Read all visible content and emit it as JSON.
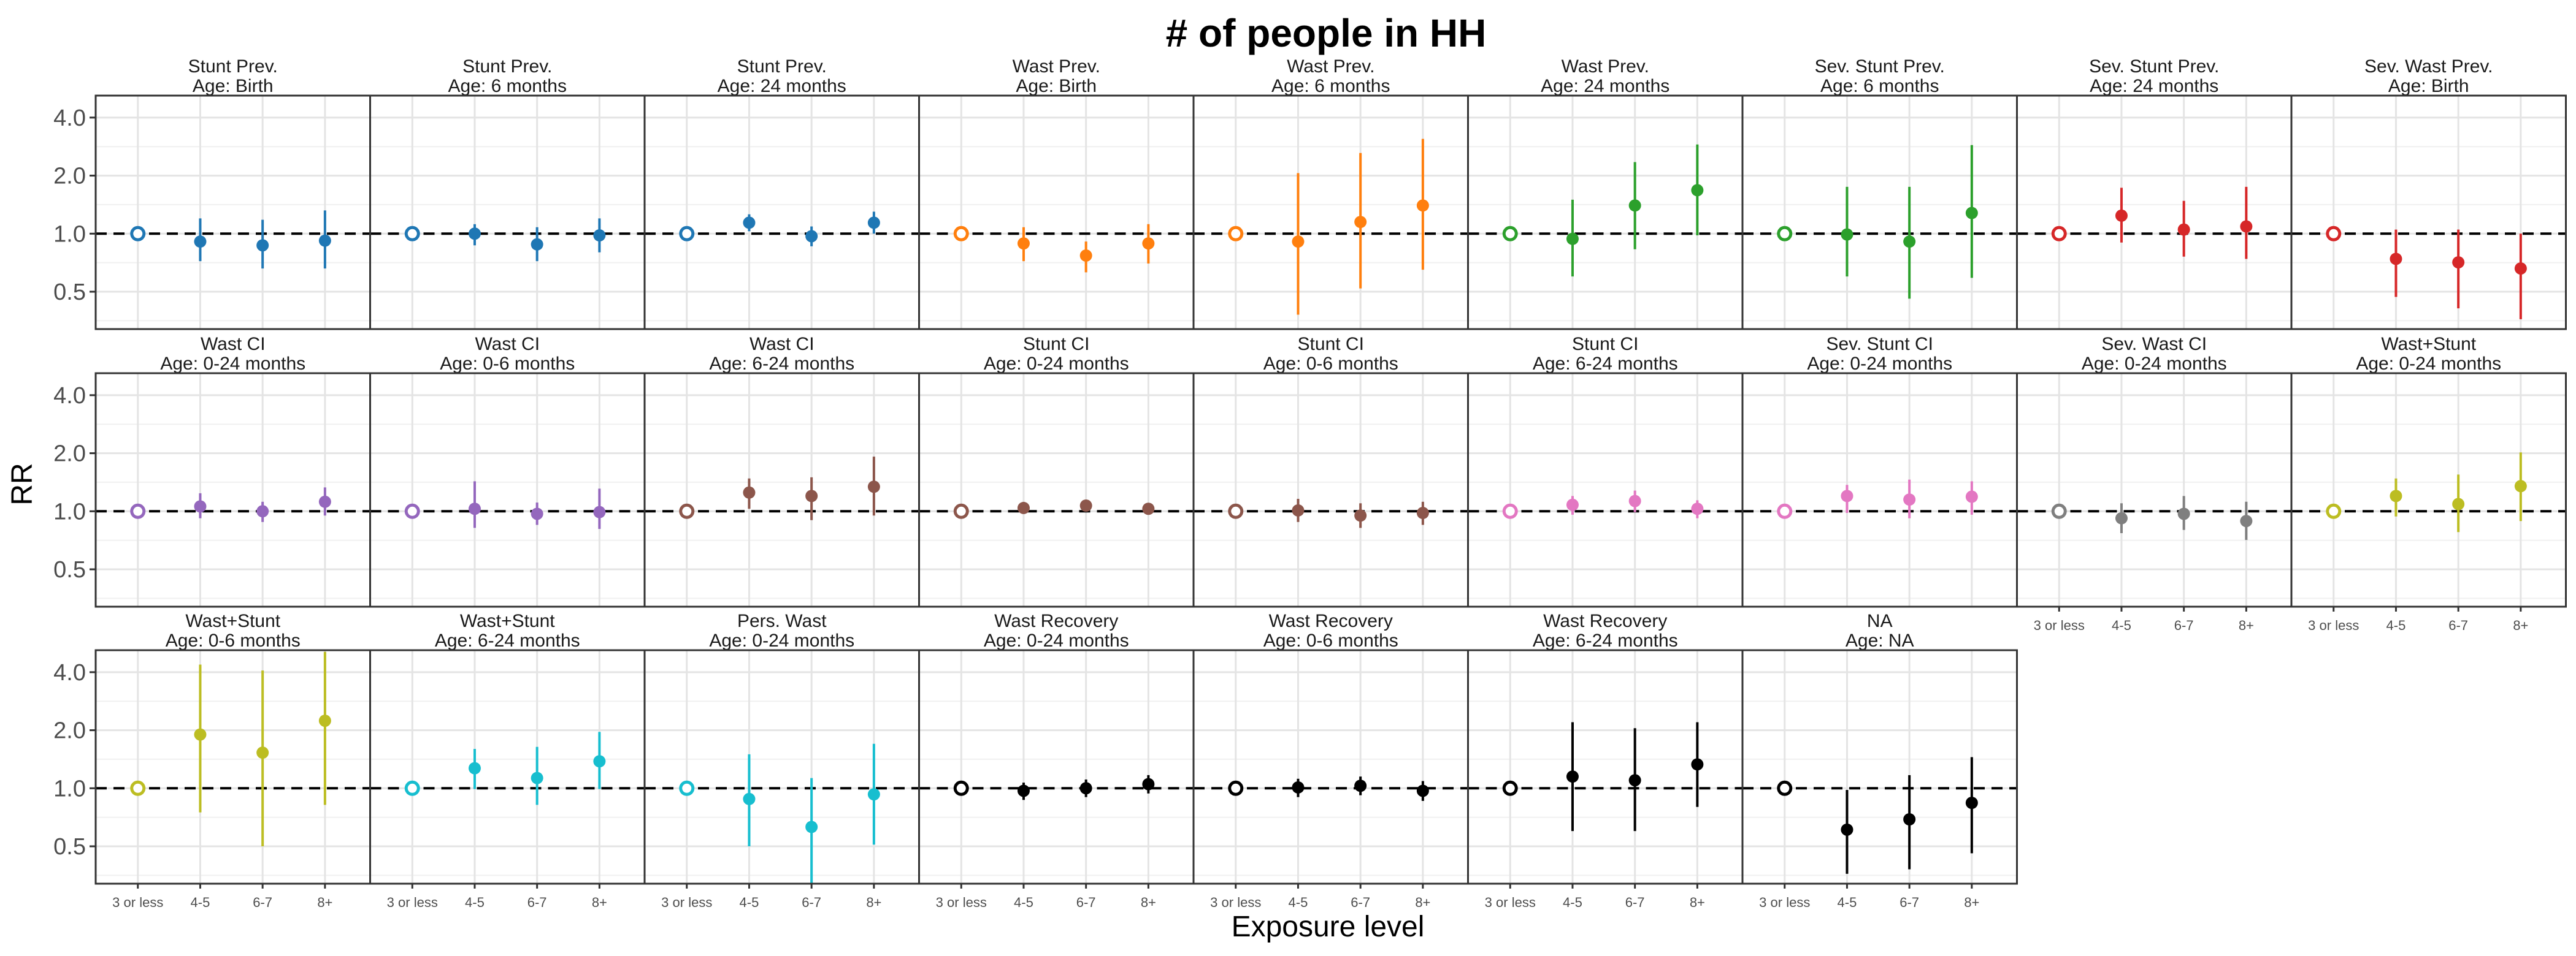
{
  "chart_data": {
    "type": "scatter",
    "title": "# of people in HH",
    "xlabel": "Exposure level",
    "ylabel": "RR",
    "categories": [
      "3 or less",
      "4-5",
      "6-7",
      "8+"
    ],
    "y_scale": "log",
    "ylim": [
      0.32,
      5.2
    ],
    "yticks": [
      0.5,
      1.0,
      2.0,
      4.0
    ],
    "ytick_labels": [
      "0.5",
      "1.0",
      "2.0",
      "4.0"
    ],
    "reference_line": 1.0,
    "reference_category": "3 or less",
    "grid": true,
    "panels": [
      {
        "line1": "Stunt Prev.",
        "line2": "Age: Birth",
        "color": "#1f77b4",
        "points": [
          {
            "rr": 1.0
          },
          {
            "rr": 0.91,
            "lo": 0.72,
            "hi": 1.2
          },
          {
            "rr": 0.87,
            "lo": 0.66,
            "hi": 1.18
          },
          {
            "rr": 0.92,
            "lo": 0.66,
            "hi": 1.32
          }
        ]
      },
      {
        "line1": "Stunt Prev.",
        "line2": "Age: 6 months",
        "color": "#1f77b4",
        "points": [
          {
            "rr": 1.0
          },
          {
            "rr": 1.0,
            "lo": 0.87,
            "hi": 1.12
          },
          {
            "rr": 0.88,
            "lo": 0.72,
            "hi": 1.08
          },
          {
            "rr": 0.98,
            "lo": 0.8,
            "hi": 1.2
          }
        ]
      },
      {
        "line1": "Stunt Prev.",
        "line2": "Age: 24 months",
        "color": "#1f77b4",
        "points": [
          {
            "rr": 1.0
          },
          {
            "rr": 1.14,
            "lo": 1.03,
            "hi": 1.26
          },
          {
            "rr": 0.97,
            "lo": 0.86,
            "hi": 1.09
          },
          {
            "rr": 1.14,
            "lo": 1.0,
            "hi": 1.3
          }
        ]
      },
      {
        "line1": "Wast Prev.",
        "line2": "Age: Birth",
        "color": "#ff7f0e",
        "points": [
          {
            "rr": 1.0
          },
          {
            "rr": 0.89,
            "lo": 0.72,
            "hi": 1.08
          },
          {
            "rr": 0.77,
            "lo": 0.63,
            "hi": 0.91
          },
          {
            "rr": 0.89,
            "lo": 0.7,
            "hi": 1.12
          }
        ]
      },
      {
        "line1": "Wast Prev.",
        "line2": "Age: 6 months",
        "color": "#ff7f0e",
        "points": [
          {
            "rr": 1.0
          },
          {
            "rr": 0.91,
            "lo": 0.38,
            "hi": 2.06
          },
          {
            "rr": 1.15,
            "lo": 0.52,
            "hi": 2.62
          },
          {
            "rr": 1.4,
            "lo": 0.65,
            "hi": 3.1
          }
        ]
      },
      {
        "line1": "Wast Prev.",
        "line2": "Age: 24 months",
        "color": "#2ca02c",
        "points": [
          {
            "rr": 1.0
          },
          {
            "rr": 0.94,
            "lo": 0.6,
            "hi": 1.5
          },
          {
            "rr": 1.4,
            "lo": 0.83,
            "hi": 2.35
          },
          {
            "rr": 1.68,
            "lo": 0.98,
            "hi": 2.9
          }
        ]
      },
      {
        "line1": "Sev. Stunt Prev.",
        "line2": "Age: 6 months",
        "color": "#2ca02c",
        "points": [
          {
            "rr": 1.0
          },
          {
            "rr": 0.99,
            "lo": 0.6,
            "hi": 1.75
          },
          {
            "rr": 0.91,
            "lo": 0.46,
            "hi": 1.75
          },
          {
            "rr": 1.28,
            "lo": 0.59,
            "hi": 2.88
          }
        ]
      },
      {
        "line1": "Sev. Stunt Prev.",
        "line2": "Age: 24 months",
        "color": "#d62728",
        "points": [
          {
            "rr": 1.0
          },
          {
            "rr": 1.24,
            "lo": 0.9,
            "hi": 1.73
          },
          {
            "rr": 1.05,
            "lo": 0.76,
            "hi": 1.48
          },
          {
            "rr": 1.09,
            "lo": 0.74,
            "hi": 1.75
          }
        ]
      },
      {
        "line1": "Sev. Wast Prev.",
        "line2": "Age: Birth",
        "color": "#d62728",
        "points": [
          {
            "rr": 1.0
          },
          {
            "rr": 0.74,
            "lo": 0.47,
            "hi": 1.05
          },
          {
            "rr": 0.71,
            "lo": 0.41,
            "hi": 1.05
          },
          {
            "rr": 0.66,
            "lo": 0.36,
            "hi": 1.0
          }
        ]
      },
      {
        "line1": "Wast CI",
        "line2": "Age: 0-24 months",
        "color": "#9467bd",
        "points": [
          {
            "rr": 1.0
          },
          {
            "rr": 1.06,
            "lo": 0.92,
            "hi": 1.24
          },
          {
            "rr": 1.0,
            "lo": 0.88,
            "hi": 1.12
          },
          {
            "rr": 1.12,
            "lo": 0.95,
            "hi": 1.33
          }
        ]
      },
      {
        "line1": "Wast CI",
        "line2": "Age: 0-6 months",
        "color": "#9467bd",
        "points": [
          {
            "rr": 1.0
          },
          {
            "rr": 1.03,
            "lo": 0.82,
            "hi": 1.43
          },
          {
            "rr": 0.97,
            "lo": 0.85,
            "hi": 1.11
          },
          {
            "rr": 0.99,
            "lo": 0.81,
            "hi": 1.31
          }
        ]
      },
      {
        "line1": "Wast CI",
        "line2": "Age: 6-24 months",
        "color": "#8c564b",
        "points": [
          {
            "rr": 1.0
          },
          {
            "rr": 1.25,
            "lo": 1.03,
            "hi": 1.48
          },
          {
            "rr": 1.2,
            "lo": 0.9,
            "hi": 1.5
          },
          {
            "rr": 1.34,
            "lo": 0.95,
            "hi": 1.92
          }
        ]
      },
      {
        "line1": "Stunt CI",
        "line2": "Age: 0-24 months",
        "color": "#8c564b",
        "points": [
          {
            "rr": 1.0
          },
          {
            "rr": 1.04,
            "lo": 0.98,
            "hi": 1.1
          },
          {
            "rr": 1.07,
            "lo": 1.0,
            "hi": 1.13
          },
          {
            "rr": 1.03,
            "lo": 0.97,
            "hi": 1.1
          }
        ]
      },
      {
        "line1": "Stunt CI",
        "line2": "Age: 0-6 months",
        "color": "#8c564b",
        "points": [
          {
            "rr": 1.0
          },
          {
            "rr": 1.01,
            "lo": 0.88,
            "hi": 1.16
          },
          {
            "rr": 0.95,
            "lo": 0.82,
            "hi": 1.1
          },
          {
            "rr": 0.98,
            "lo": 0.85,
            "hi": 1.12
          }
        ]
      },
      {
        "line1": "Stunt CI",
        "line2": "Age: 6-24 months",
        "color": "#e377c2",
        "points": [
          {
            "rr": 1.0
          },
          {
            "rr": 1.08,
            "lo": 0.96,
            "hi": 1.2
          },
          {
            "rr": 1.13,
            "lo": 0.99,
            "hi": 1.28
          },
          {
            "rr": 1.03,
            "lo": 0.92,
            "hi": 1.14
          }
        ]
      },
      {
        "line1": "Sev. Stunt CI",
        "line2": "Age: 0-24 months",
        "color": "#e377c2",
        "points": [
          {
            "rr": 1.0
          },
          {
            "rr": 1.2,
            "lo": 0.98,
            "hi": 1.37
          },
          {
            "rr": 1.15,
            "lo": 0.92,
            "hi": 1.46
          },
          {
            "rr": 1.19,
            "lo": 0.96,
            "hi": 1.43
          }
        ]
      },
      {
        "line1": "Sev. Wast CI",
        "line2": "Age: 0-24 months",
        "color": "#7f7f7f",
        "points": [
          {
            "rr": 1.0
          },
          {
            "rr": 0.92,
            "lo": 0.77,
            "hi": 1.1
          },
          {
            "rr": 0.97,
            "lo": 0.8,
            "hi": 1.2
          },
          {
            "rr": 0.89,
            "lo": 0.71,
            "hi": 1.12
          }
        ]
      },
      {
        "line1": "Wast+Stunt",
        "line2": "Age: 0-24 months",
        "color": "#bcbd22",
        "points": [
          {
            "rr": 1.0
          },
          {
            "rr": 1.2,
            "lo": 0.94,
            "hi": 1.48
          },
          {
            "rr": 1.09,
            "lo": 0.78,
            "hi": 1.55
          },
          {
            "rr": 1.35,
            "lo": 0.89,
            "hi": 2.02
          }
        ]
      },
      {
        "line1": "Wast+Stunt",
        "line2": "Age: 0-6 months",
        "color": "#bcbd22",
        "points": [
          {
            "rr": 1.0
          },
          {
            "rr": 1.9,
            "lo": 0.75,
            "hi": 4.38
          },
          {
            "rr": 1.53,
            "lo": 0.5,
            "hi": 4.08
          },
          {
            "rr": 2.24,
            "lo": 0.82,
            "hi": 5.1
          }
        ]
      },
      {
        "line1": "Wast+Stunt",
        "line2": "Age: 6-24 months",
        "color": "#17becf",
        "points": [
          {
            "rr": 1.0
          },
          {
            "rr": 1.27,
            "lo": 0.99,
            "hi": 1.6
          },
          {
            "rr": 1.13,
            "lo": 0.82,
            "hi": 1.64
          },
          {
            "rr": 1.38,
            "lo": 0.99,
            "hi": 1.96
          }
        ]
      },
      {
        "line1": "Pers. Wast",
        "line2": "Age: 0-24 months",
        "color": "#17becf",
        "points": [
          {
            "rr": 1.0
          },
          {
            "rr": 0.88,
            "lo": 0.5,
            "hi": 1.5
          },
          {
            "rr": 0.63,
            "lo": 0.32,
            "hi": 1.13
          },
          {
            "rr": 0.93,
            "lo": 0.51,
            "hi": 1.7
          }
        ]
      },
      {
        "line1": "Wast Recovery",
        "line2": "Age: 0-24 months",
        "color": "#000000",
        "points": [
          {
            "rr": 1.0
          },
          {
            "rr": 0.97,
            "lo": 0.87,
            "hi": 1.07
          },
          {
            "rr": 1.0,
            "lo": 0.9,
            "hi": 1.11
          },
          {
            "rr": 1.05,
            "lo": 0.94,
            "hi": 1.17
          }
        ]
      },
      {
        "line1": "Wast Recovery",
        "line2": "Age: 0-6 months",
        "color": "#000000",
        "points": [
          {
            "rr": 1.0
          },
          {
            "rr": 1.01,
            "lo": 0.9,
            "hi": 1.12
          },
          {
            "rr": 1.03,
            "lo": 0.92,
            "hi": 1.15
          },
          {
            "rr": 0.97,
            "lo": 0.86,
            "hi": 1.09
          }
        ]
      },
      {
        "line1": "Wast Recovery",
        "line2": "Age: 6-24 months",
        "color": "#000000",
        "points": [
          {
            "rr": 1.0
          },
          {
            "rr": 1.15,
            "lo": 0.6,
            "hi": 2.2
          },
          {
            "rr": 1.1,
            "lo": 0.6,
            "hi": 2.05
          },
          {
            "rr": 1.33,
            "lo": 0.8,
            "hi": 2.2
          }
        ]
      },
      {
        "line1": "NA",
        "line2": "Age: NA",
        "color": "#000000",
        "points": [
          {
            "rr": 1.0
          },
          {
            "rr": 0.61,
            "lo": 0.36,
            "hi": 0.98
          },
          {
            "rr": 0.69,
            "lo": 0.38,
            "hi": 1.17
          },
          {
            "rr": 0.84,
            "lo": 0.46,
            "hi": 1.45
          }
        ]
      }
    ]
  }
}
